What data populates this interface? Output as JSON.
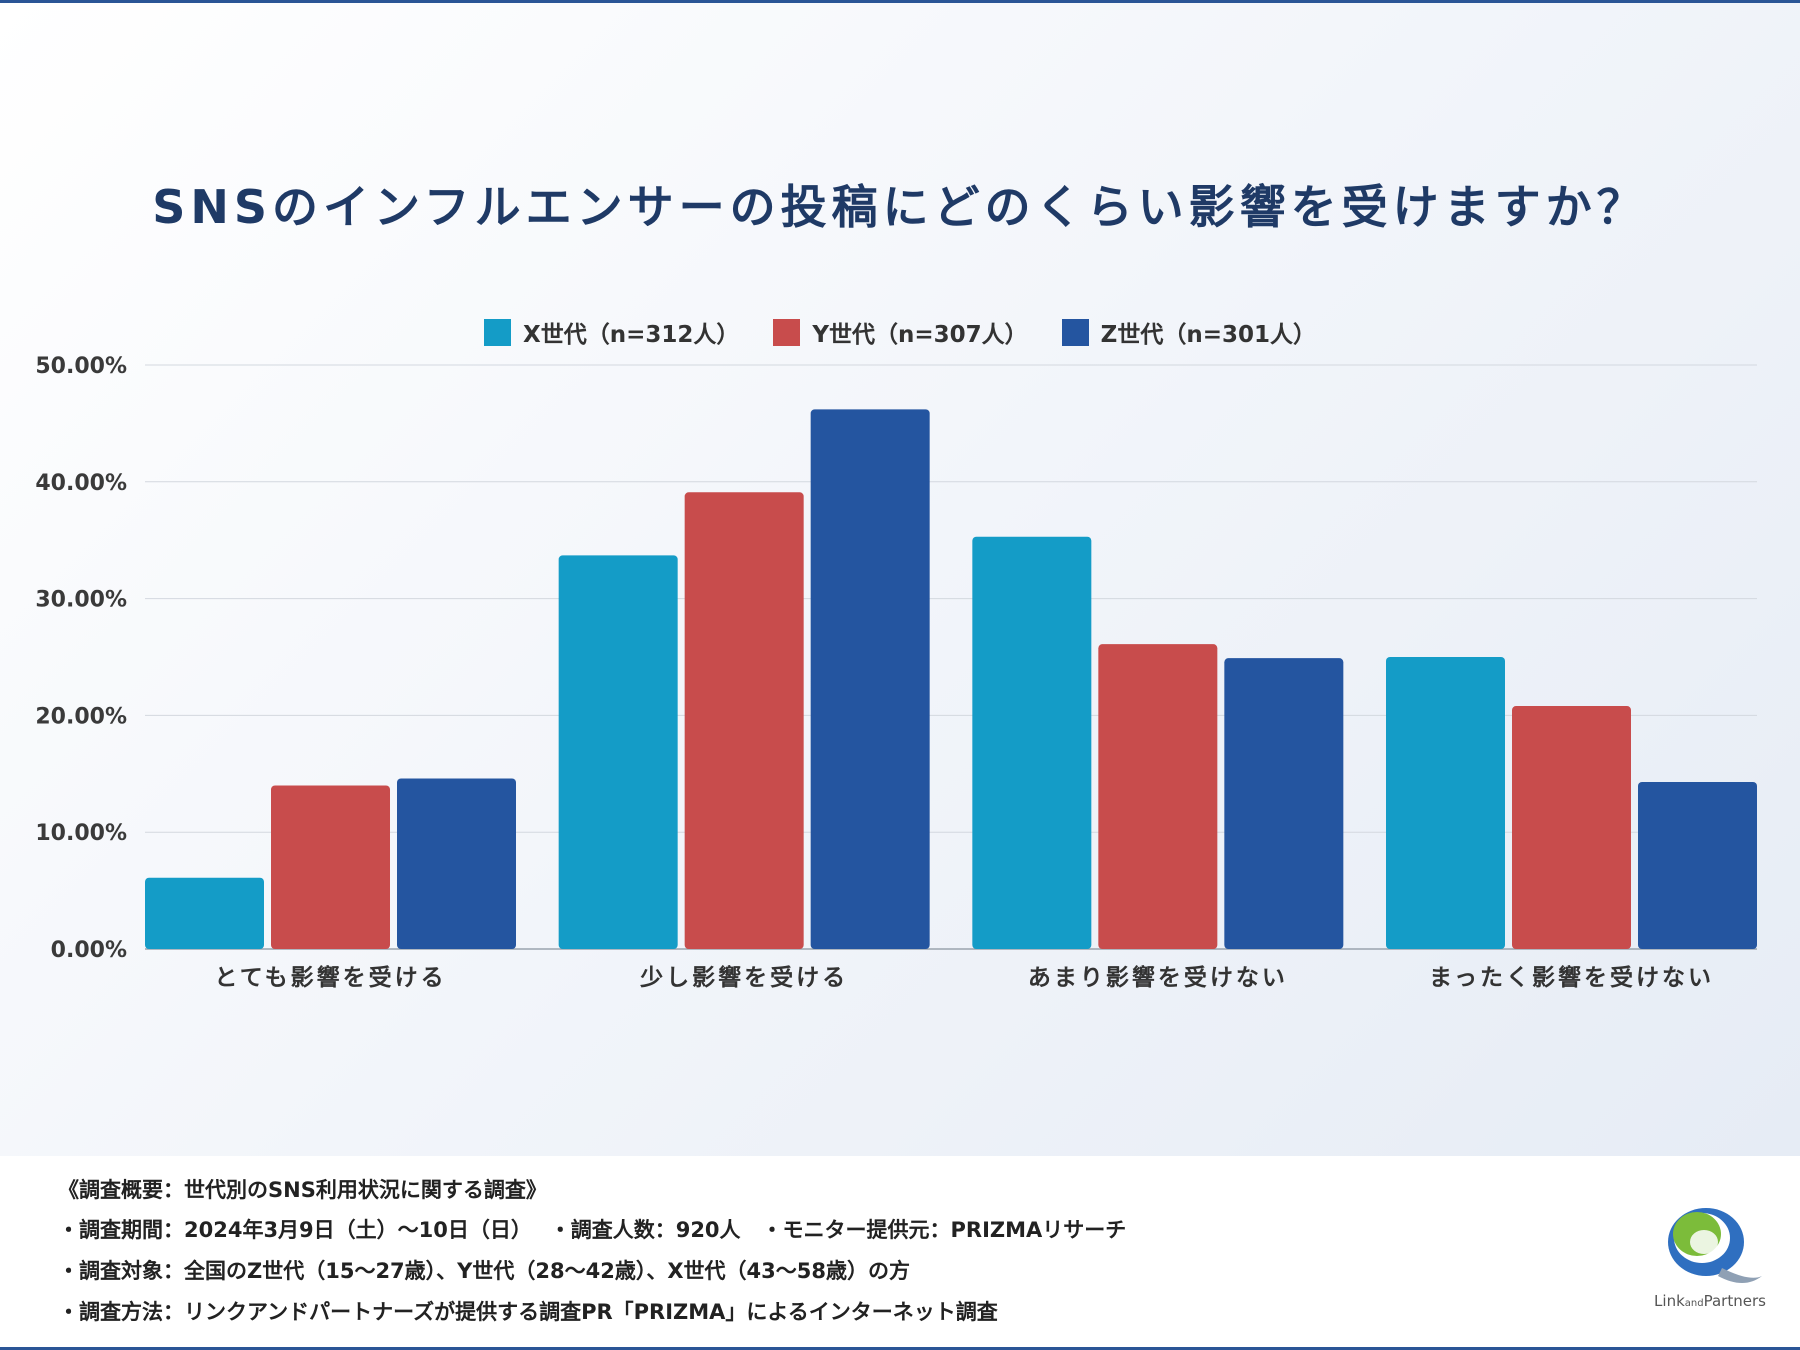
{
  "title": "SNSのインフルエンサーの投稿にどのくらい影響を受けますか？",
  "chart_data": {
    "type": "bar",
    "title": "SNSのインフルエンサーの投稿にどのくらい影響を受けますか？",
    "categories": [
      "とても影響を受ける",
      "少し影響を受ける",
      "あまり影響を受けない",
      "まったく影響を受けない"
    ],
    "series": [
      {
        "name": "X世代（n=312人）",
        "color": "#149cc7",
        "values": [
          6.1,
          33.7,
          35.3,
          25.0
        ]
      },
      {
        "name": "Y世代（n=307人）",
        "color": "#c84c4c",
        "values": [
          14.0,
          39.1,
          26.1,
          20.8
        ]
      },
      {
        "name": "Z世代（n=301人）",
        "color": "#2455a0",
        "values": [
          14.6,
          46.2,
          24.9,
          14.3
        ]
      }
    ],
    "yticks": [
      "0.00%",
      "10.00%",
      "20.00%",
      "30.00%",
      "40.00%",
      "50.00%"
    ],
    "ylim": [
      0,
      50
    ],
    "legend_position": "top-center",
    "grid": true
  },
  "footer": {
    "line1": "《調査概要：世代別のSNS利用状況に関する調査》",
    "line2": "・調査期間：2024年3月9日（土）〜10日（日）　 ・調査人数：920人　・モニター提供元：PRIZMAリサーチ",
    "line3": "・調査対象：全国のZ世代（15〜27歳）、Y世代（28〜42歳）、X世代（43〜58歳）の方",
    "line4": "・調査方法：リンクアンドパートナーズが提供する調査PR「PRIZMA」によるインターネット調査"
  },
  "logo": {
    "part1": "Link",
    "part2": "and",
    "part3": "Partners"
  }
}
